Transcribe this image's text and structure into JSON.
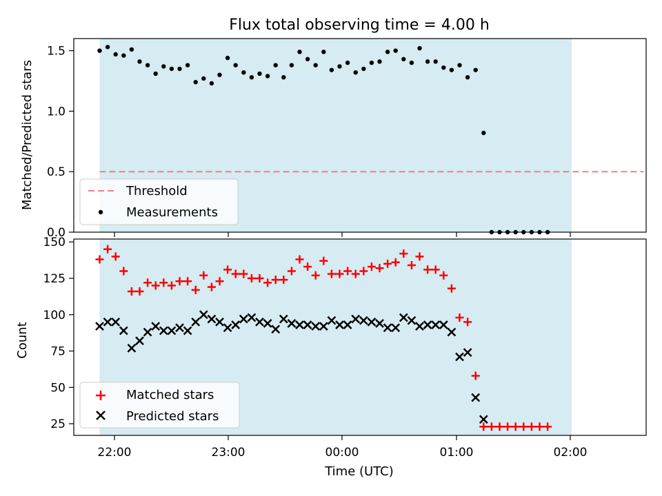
{
  "title": "Flux total observing time = 4.00 h",
  "chart_data": [
    {
      "type": "scatter",
      "panel": "top",
      "ylabel": "Matched/Predicted stars",
      "ylim": [
        0,
        1.6
      ],
      "yticks": [
        "0.0",
        "0.5",
        "1.0",
        "1.5"
      ],
      "shaded_region": {
        "x_start": 0,
        "x_end": 59,
        "color": "#add8e6"
      },
      "threshold": {
        "name": "Threshold",
        "y": 0.5,
        "x_start": 0,
        "x_end": 68,
        "color": "#f08080"
      },
      "legend": {
        "placement": "lower-left",
        "entries": [
          "Threshold",
          "Measurements"
        ]
      },
      "series": [
        {
          "name": "Measurements",
          "color": "#000000",
          "marker": "dot",
          "values": [
            1.5,
            1.53,
            1.47,
            1.46,
            1.51,
            1.41,
            1.38,
            1.31,
            1.37,
            1.35,
            1.35,
            1.38,
            1.24,
            1.27,
            1.23,
            1.3,
            1.44,
            1.38,
            1.32,
            1.28,
            1.31,
            1.29,
            1.38,
            1.28,
            1.38,
            1.49,
            1.43,
            1.38,
            1.49,
            1.34,
            1.37,
            1.4,
            1.32,
            1.35,
            1.4,
            1.41,
            1.49,
            1.5,
            1.43,
            1.4,
            1.52,
            1.41,
            1.41,
            1.36,
            1.34,
            1.38,
            1.28,
            1.34,
            0.82,
            0,
            0,
            0,
            0,
            0,
            0,
            0,
            0
          ]
        }
      ]
    },
    {
      "type": "scatter",
      "panel": "bottom",
      "ylabel": "Count",
      "xlabel": "Time (UTC)",
      "ylim": [
        17,
        152
      ],
      "yticks": [
        "25",
        "50",
        "75",
        "100",
        "125",
        "150"
      ],
      "xticks": [
        "22:00",
        "23:00",
        "00:00",
        "01:00",
        "02:00"
      ],
      "legend": {
        "placement": "lower-left",
        "entries": [
          "Matched stars",
          "Predicted stars"
        ]
      },
      "series": [
        {
          "name": "Matched stars",
          "color": "#ff0000",
          "marker": "plus",
          "values": [
            138,
            145,
            140,
            130,
            116,
            116,
            122,
            120,
            122,
            120,
            123,
            123,
            117,
            127,
            119,
            123,
            131,
            128,
            128,
            125,
            125,
            122,
            124,
            124,
            130,
            138,
            133,
            127,
            137,
            128,
            128,
            130,
            128,
            130,
            133,
            132,
            135,
            136,
            142,
            134,
            140,
            131,
            131,
            127,
            118,
            98,
            95,
            58,
            23,
            23,
            23,
            23,
            23,
            23,
            23,
            23,
            23
          ]
        },
        {
          "name": "Predicted stars",
          "color": "#000000",
          "marker": "x",
          "values": [
            92,
            95,
            95,
            89,
            77,
            82,
            88,
            92,
            89,
            89,
            91,
            89,
            95,
            100,
            97,
            95,
            91,
            93,
            97,
            98,
            95,
            94,
            90,
            97,
            94,
            93,
            93,
            92,
            92,
            96,
            93,
            93,
            97,
            96,
            95,
            94,
            91,
            91,
            98,
            96,
            92,
            93,
            93,
            93,
            88,
            71,
            74,
            43,
            28
          ]
        }
      ]
    }
  ]
}
